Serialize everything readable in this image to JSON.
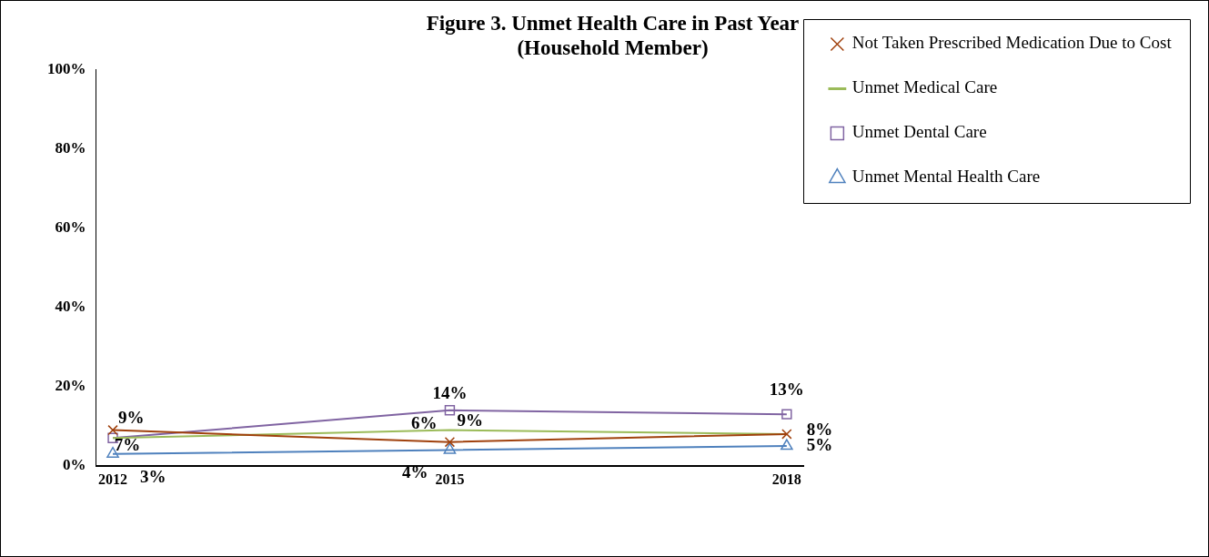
{
  "chart_data": {
    "type": "line",
    "title": "Figure 3. Unmet Health Care in Past Year",
    "subtitle": "(Household Member)",
    "categories": [
      "2012",
      "2015",
      "2018"
    ],
    "series": [
      {
        "name": "Not Taken Prescribed Medication Due to Cost",
        "color": "#a0410d",
        "marker": "cross",
        "values": [
          9,
          6,
          8
        ],
        "value_labels": [
          "9%",
          "6%",
          null
        ]
      },
      {
        "name": "Unmet Medical Care",
        "color": "#9bbb59",
        "marker": "none",
        "values": [
          7,
          9,
          8
        ],
        "value_labels": [
          null,
          "9%",
          "8%"
        ]
      },
      {
        "name": "Unmet Dental Care",
        "color": "#8064a2",
        "marker": "square",
        "values": [
          7,
          14,
          13
        ],
        "value_labels": [
          "7%",
          "14%",
          "13%"
        ]
      },
      {
        "name": "Unmet Mental Health Care",
        "color": "#4f81bd",
        "marker": "triangle",
        "values": [
          3,
          4,
          5
        ],
        "value_labels": [
          "3%",
          "4%",
          "5%"
        ]
      }
    ],
    "ylim": [
      0,
      100
    ],
    "yticks": [
      {
        "value": 0,
        "label": "0%"
      },
      {
        "value": 20,
        "label": "20%"
      },
      {
        "value": 40,
        "label": "40%"
      },
      {
        "value": 60,
        "label": "60%"
      },
      {
        "value": 80,
        "label": "80%"
      },
      {
        "value": 100,
        "label": "100%"
      }
    ],
    "grid": false,
    "legend": "top right"
  }
}
